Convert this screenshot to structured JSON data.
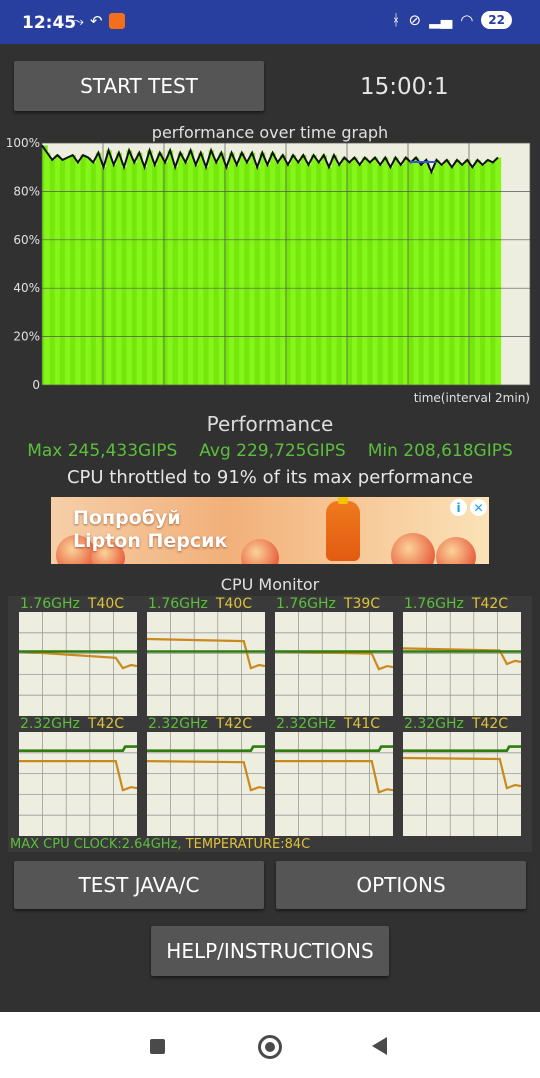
{
  "status_bar": {
    "time": "12:45",
    "battery": "22",
    "left_icons": [
      "cast-icon",
      "reply-icon",
      "mi-app-icon"
    ],
    "right_icons": [
      "bluetooth-icon",
      "mute-icon",
      "signal-icon",
      "wifi-icon",
      "battery-icon"
    ]
  },
  "controls": {
    "start_label": "START TEST",
    "timer": "15:00:1",
    "java_label": "TEST JAVA/C",
    "options_label": "OPTIONS",
    "help_label": "HELP/INSTRUCTIONS"
  },
  "perf_graph": {
    "title": "performance over time graph",
    "xlabel": "time(interval 2min)",
    "ytick_labels": [
      "100%",
      "80%",
      "60%",
      "40%",
      "20%",
      "0"
    ]
  },
  "chart_data": {
    "type": "area",
    "title": "performance over time graph",
    "xlabel": "time(interval 2min)",
    "ylabel": "",
    "ylim": [
      0,
      100
    ],
    "yticks": [
      0,
      20,
      40,
      60,
      80,
      100
    ],
    "grid": true,
    "series": [
      {
        "values": [
          99,
          96,
          93,
          95,
          93,
          94,
          95,
          92,
          95,
          94,
          92,
          96,
          90,
          97,
          91,
          96,
          90,
          97,
          92,
          96,
          90,
          97,
          91,
          96,
          92,
          97,
          90,
          96,
          92,
          97,
          91,
          96,
          90,
          97,
          92,
          96,
          90,
          96,
          91,
          96,
          92,
          96,
          90,
          96,
          91,
          96,
          92,
          95,
          91,
          95,
          92,
          95,
          91,
          95,
          92,
          95,
          90,
          95,
          91,
          94,
          92,
          94,
          91,
          94,
          92,
          94,
          91,
          94,
          90,
          94,
          91,
          94,
          92,
          94,
          91,
          93,
          88,
          93,
          91,
          93,
          90,
          93,
          91,
          93,
          90,
          93,
          91,
          93,
          92,
          94
        ]
      }
    ]
  },
  "performance": {
    "title": "Performance",
    "max": "Max 245,433GIPS",
    "avg": "Avg 229,725GIPS",
    "min": "Min 208,618GIPS",
    "throttle": "CPU throttled to 91% of its max performance"
  },
  "ad": {
    "line1": "Попробуй",
    "line2": "Lipton Персик",
    "icons": [
      "info-icon",
      "close-icon"
    ]
  },
  "cpu_monitor": {
    "title": "CPU Monitor",
    "cores": [
      {
        "freq": "1.76GHz",
        "temp": "T40C",
        "freq_level": [
          0.62,
          0.62
        ],
        "temp_level": [
          0.62,
          0.56,
          0.46
        ]
      },
      {
        "freq": "1.76GHz",
        "temp": "T40C",
        "freq_level": [
          0.62,
          0.62
        ],
        "temp_level": [
          0.74,
          0.72,
          0.46
        ]
      },
      {
        "freq": "1.76GHz",
        "temp": "T39C",
        "freq_level": [
          0.62,
          0.62
        ],
        "temp_level": [
          0.62,
          0.6,
          0.45
        ]
      },
      {
        "freq": "1.76GHz",
        "temp": "T42C",
        "freq_level": [
          0.62,
          0.62
        ],
        "temp_level": [
          0.65,
          0.63,
          0.5
        ]
      },
      {
        "freq": "2.32GHz",
        "temp": "T42C",
        "freq_level": [
          0.82,
          0.86
        ],
        "temp_level": [
          0.72,
          0.72,
          0.44
        ]
      },
      {
        "freq": "2.32GHz",
        "temp": "T42C",
        "freq_level": [
          0.82,
          0.86
        ],
        "temp_level": [
          0.72,
          0.71,
          0.44
        ]
      },
      {
        "freq": "2.32GHz",
        "temp": "T41C",
        "freq_level": [
          0.82,
          0.86
        ],
        "temp_level": [
          0.72,
          0.72,
          0.42
        ]
      },
      {
        "freq": "2.32GHz",
        "temp": "T42C",
        "freq_level": [
          0.82,
          0.86
        ],
        "temp_level": [
          0.75,
          0.74,
          0.46
        ]
      }
    ],
    "max_clock": "MAX CPU CLOCK:2.64GHz,",
    "max_temp": "TEMPERATURE:84C"
  },
  "colors": {
    "status_bar": "#283fa0",
    "background": "#313131",
    "button": "#555555",
    "graph_fill": "#7cf20f",
    "graph_line": "#111111",
    "stat_green": "#5bbf3c",
    "temp_yellow": "#e0c13a",
    "freq_line": "#2e7d0e",
    "temp_line": "#c88a1e"
  }
}
